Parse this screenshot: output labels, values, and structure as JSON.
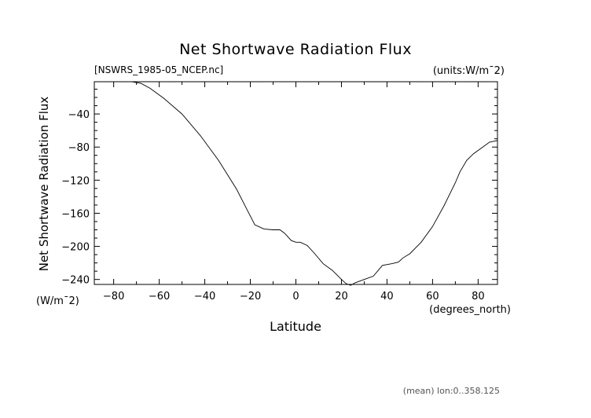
{
  "chart_data": {
    "type": "line",
    "title": "Net Shortwave Radiation Flux",
    "subtitle_left": "[NSWRS_1985-05_NCEP.nc]",
    "subtitle_right": "(units:W/m^2)",
    "subtitle_right_display": "(units:W/m¯2)",
    "xlabel": "Latitude",
    "x_units": "(degrees_north)",
    "ylabel": "Net Shortwave Radiation Flux",
    "y_units": "(W/m¯2)",
    "footer": "(mean) lon:0..358.125",
    "xlim": [
      -88.5,
      88.5
    ],
    "ylim": [
      -246,
      -1
    ],
    "x_ticks": [
      -80,
      -60,
      -40,
      -20,
      0,
      20,
      40,
      60,
      80
    ],
    "x_tick_labels": [
      "−80",
      "−60",
      "−40",
      "−20",
      "0",
      "20",
      "40",
      "60",
      "80"
    ],
    "y_ticks": [
      -40,
      -80,
      -120,
      -160,
      -200,
      -240
    ],
    "y_tick_labels": [
      "−40",
      "−80",
      "−120",
      "−160",
      "−200",
      "−240"
    ],
    "series": [
      {
        "x": [
          -88.5,
          -80,
          -72,
          -68,
          -64,
          -58,
          -50,
          -42,
          -34,
          -26,
          -21,
          -18,
          -14,
          -10,
          -7,
          -5,
          -2,
          0,
          2,
          5,
          8,
          12,
          16,
          20,
          22,
          24,
          26,
          30,
          34,
          38,
          40,
          42,
          45,
          47,
          50,
          55,
          60,
          65,
          70,
          72,
          75,
          78,
          82,
          85,
          88.5
        ],
        "y": [
          -1,
          -1,
          -1,
          -3,
          -9,
          -21,
          -40,
          -66,
          -96,
          -131,
          -158,
          -174,
          -179,
          -180,
          -180,
          -184,
          -193,
          -195,
          -195,
          -199,
          -208,
          -221,
          -229,
          -240,
          -245,
          -247,
          -244,
          -240,
          -236,
          -223,
          -222,
          -221,
          -219,
          -214,
          -209,
          -195,
          -176,
          -151,
          -123,
          -110,
          -96,
          -88,
          -80,
          -74,
          -72
        ]
      }
    ]
  }
}
